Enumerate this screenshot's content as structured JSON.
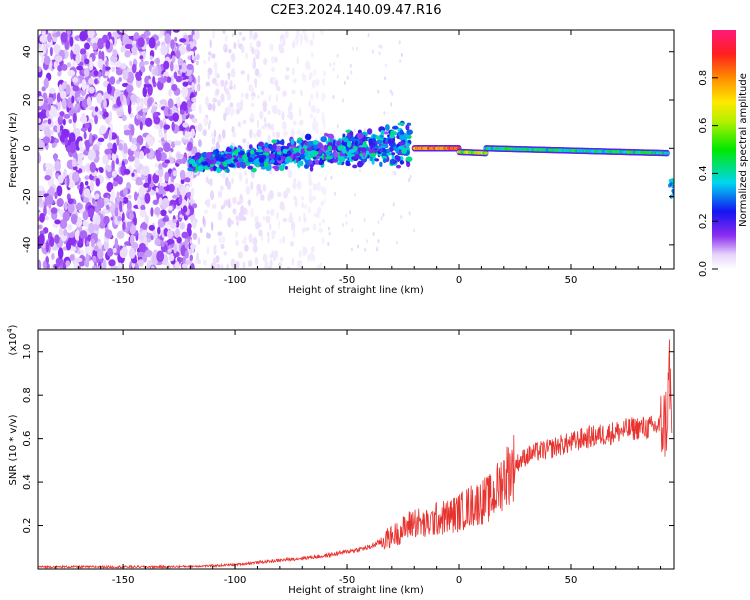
{
  "title": "C2E3.2024.140.09.47.R16",
  "colors": {
    "snr_line": "#e8322e",
    "axis": "#000000",
    "background": "#ffffff"
  },
  "chart_data": [
    {
      "type": "heatmap",
      "xlabel": "Height of straight line (km)",
      "ylabel": "Frequency (Hz)",
      "xlim": [
        -188,
        96
      ],
      "ylim": [
        -50,
        49
      ],
      "x_ticks": [
        -150,
        -100,
        -50,
        0,
        50
      ],
      "y_ticks": [
        -40,
        -20,
        0,
        20,
        40
      ],
      "x_tick_labels": [
        "-150",
        "-100",
        "-50",
        "0",
        "50"
      ],
      "y_tick_labels": [
        "-40",
        "-20",
        "0",
        "20",
        "40"
      ],
      "grid": false,
      "colorbar": {
        "label": "Normalized spectral amplitude",
        "range": [
          0.0,
          1.0
        ],
        "ticks": [
          0.0,
          0.2,
          0.4,
          0.6,
          0.8
        ],
        "tick_labels": [
          "0.0",
          "0.2",
          "0.4",
          "0.6",
          "0.8"
        ],
        "colormap": "rainbow (white-violet-blue-cyan-green-yellow-orange-red-magenta)"
      },
      "regions": [
        {
          "x_range": [
            -188,
            -120
          ],
          "freq_range": [
            -50,
            49
          ],
          "amplitude": [
            0.0,
            0.2
          ],
          "description": "broadband noise"
        },
        {
          "x_range": [
            -120,
            -95
          ],
          "freq_range": [
            -50,
            49
          ],
          "amplitude": [
            0.0,
            0.1
          ],
          "description": "sparse noise"
        },
        {
          "x_range": [
            -120,
            -22
          ],
          "freq_center": [
            -6,
            0
          ],
          "freq_halfwidth": [
            4,
            10
          ],
          "amplitude": [
            0.1,
            0.45
          ],
          "description": "scattered signal band"
        },
        {
          "x_range": [
            -20,
            0
          ],
          "freq_center": 0,
          "freq_halfwidth": 1.5,
          "amplitude": [
            0.6,
            1.0
          ],
          "description": "strong narrow line"
        },
        {
          "x_range": [
            0,
            12
          ],
          "freq_center": -2,
          "freq_halfwidth": 1.5,
          "amplitude": [
            0.4,
            0.8
          ],
          "description": "narrow line"
        },
        {
          "x_range": [
            12,
            93
          ],
          "freq_center": [
            0,
            -2
          ],
          "freq_halfwidth": 1.5,
          "amplitude": [
            0.3,
            0.55
          ],
          "description": "narrow line"
        },
        {
          "x_range": [
            93,
            96
          ],
          "freq_center": -17,
          "freq_halfwidth": 4,
          "amplitude": [
            0.2,
            0.4
          ],
          "description": "edge artifact"
        }
      ]
    },
    {
      "type": "line",
      "xlabel": "Height of straight line (km)",
      "ylabel": "SNR (10 * v/v)",
      "y_scale_note": "(x10",
      "y_scale_exp": "4",
      "y_scale_close": ")",
      "xlim": [
        -188,
        96
      ],
      "ylim": [
        0.0,
        1.1
      ],
      "x_ticks": [
        -150,
        -100,
        -50,
        0,
        50
      ],
      "y_ticks": [
        0.2,
        0.4,
        0.6,
        0.8,
        1.0
      ],
      "x_tick_labels": [
        "-150",
        "-100",
        "-50",
        "0",
        "50"
      ],
      "y_tick_labels": [
        "0.2",
        "0.4",
        "0.6",
        "0.8",
        "1.0"
      ],
      "grid": false,
      "series": [
        {
          "color": "#e8322e",
          "x": [
            -188,
            -170,
            -150,
            -130,
            -110,
            -100,
            -90,
            -80,
            -70,
            -60,
            -50,
            -40,
            -30,
            -25,
            -20,
            -15,
            -10,
            -5,
            0,
            5,
            10,
            15,
            20,
            25,
            30,
            35,
            40,
            45,
            50,
            55,
            60,
            65,
            70,
            75,
            80,
            85,
            90,
            92,
            93,
            94,
            95
          ],
          "y": [
            0.01,
            0.01,
            0.01,
            0.01,
            0.015,
            0.02,
            0.03,
            0.04,
            0.05,
            0.06,
            0.08,
            0.1,
            0.15,
            0.18,
            0.22,
            0.2,
            0.23,
            0.24,
            0.26,
            0.29,
            0.31,
            0.33,
            0.42,
            0.48,
            0.52,
            0.54,
            0.55,
            0.57,
            0.58,
            0.6,
            0.61,
            0.62,
            0.63,
            0.64,
            0.65,
            0.65,
            0.66,
            0.67,
            0.7,
            0.95,
            0.6
          ]
        }
      ]
    }
  ]
}
